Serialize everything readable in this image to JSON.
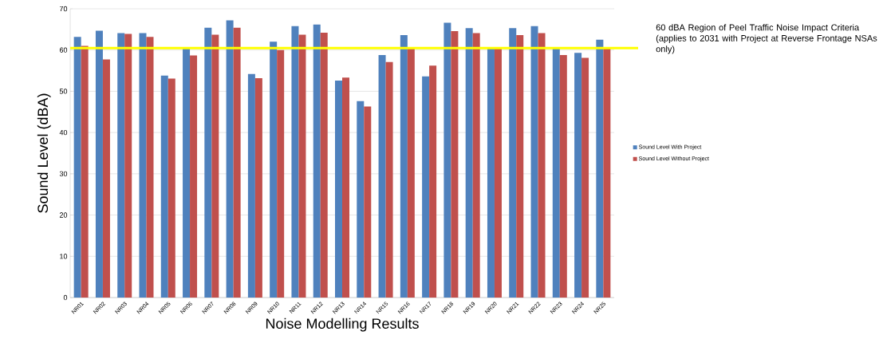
{
  "chart_data": {
    "type": "bar",
    "xlabel": "Noise Modelling Results",
    "ylabel": "Sound Level (dBA)",
    "categories": [
      "NR01",
      "NR02",
      "NR03",
      "NR04",
      "NR05",
      "NR06",
      "NR07",
      "NR08",
      "NR09",
      "NR10",
      "NR11",
      "NR12",
      "NR13",
      "NR14",
      "NR15",
      "NR16",
      "NR17",
      "NR18",
      "NR19",
      "NR20",
      "NR21",
      "NR22",
      "NR23",
      "NR24",
      "NR25"
    ],
    "series": [
      {
        "name": "Sound Level With Project",
        "color": "#4f81bd",
        "values": [
          63.2,
          64.7,
          64.1,
          64.1,
          53.8,
          60.5,
          65.4,
          67.2,
          54.2,
          62.0,
          65.8,
          66.2,
          52.6,
          47.6,
          58.8,
          63.6,
          53.6,
          66.6,
          65.3,
          60.5,
          65.3,
          65.8,
          60.5,
          59.3,
          62.5
        ]
      },
      {
        "name": "Sound Level Without Project",
        "color": "#c0504d",
        "values": [
          61.0,
          57.7,
          63.9,
          63.2,
          53.1,
          58.7,
          63.7,
          65.4,
          53.2,
          60.0,
          63.7,
          64.2,
          53.3,
          46.3,
          57.1,
          60.5,
          56.2,
          64.6,
          64.1,
          60.6,
          63.6,
          64.1,
          58.8,
          58.1,
          60.5
        ]
      }
    ],
    "ylim": [
      0,
      70
    ],
    "yticks": [
      0,
      10,
      20,
      30,
      40,
      50,
      60,
      70
    ],
    "grid": "y",
    "legend": "right",
    "ref_lines": [
      {
        "axis": "y",
        "value": 60.5,
        "color": "#ffff00",
        "label": "60 dBA Region of Peel Traffic Noise Impact Criteria\n(applies to 2031 with Project at Reverse Frontage NSAs only)"
      }
    ]
  }
}
